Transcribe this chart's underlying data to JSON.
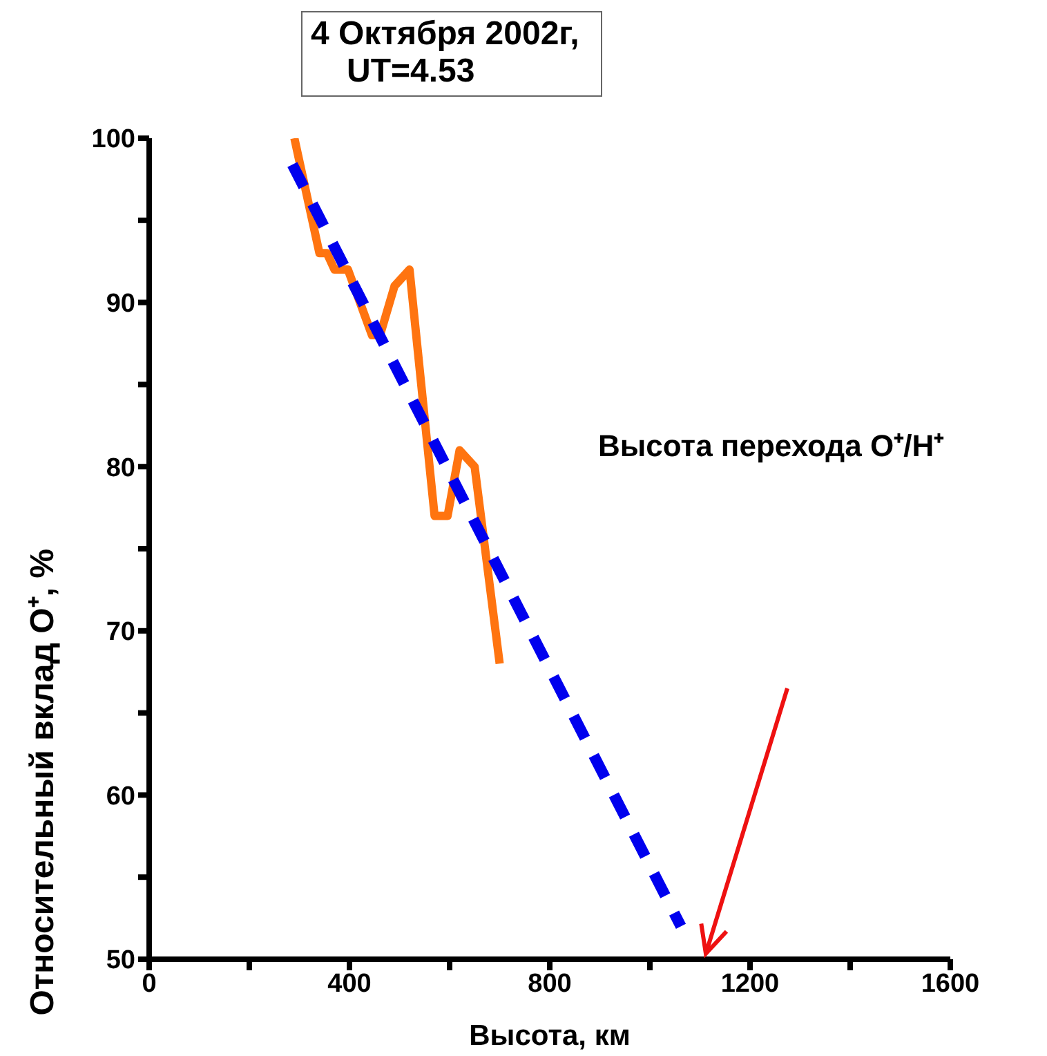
{
  "chart_data": {
    "type": "line",
    "title": "4 Октября 2002г,\nUT=4.53",
    "xlabel": "Высота, км",
    "ylabel": "Относительный вклад O⁺, %",
    "xlim": [
      0,
      1600
    ],
    "xticks": [
      0,
      {
        "value": 200,
        "label": null
      },
      400,
      {
        "value": 600,
        "label": null
      },
      800,
      {
        "value": 1000,
        "label": null
      },
      1200,
      {
        "value": 1400,
        "label": null
      },
      1600
    ],
    "ylim": [
      50,
      100
    ],
    "yticks": [
      50,
      {
        "value": 55,
        "label": null
      },
      60,
      {
        "value": 65,
        "label": null
      },
      70,
      {
        "value": 75,
        "label": null
      },
      80,
      {
        "value": 85,
        "label": null
      },
      90,
      {
        "value": 95,
        "label": null
      },
      100
    ],
    "series": [
      {
        "color": "#ff7410",
        "line_style": "solid",
        "x": [
          290,
          340,
          355,
          370,
          397,
          445,
          461,
          490,
          520,
          570,
          596,
          620,
          650,
          700
        ],
        "values": [
          100,
          93,
          93,
          92,
          92,
          88,
          88,
          91,
          92,
          77,
          77,
          81,
          80,
          68
        ]
      },
      {
        "color": "#0000ee",
        "line_style": "dashed",
        "x": [
          286,
          1062
        ],
        "values": [
          98.4,
          52
        ]
      }
    ],
    "marker": "none",
    "annotations": [
      "Высота перехода O⁺/H⁺"
    ]
  }
}
